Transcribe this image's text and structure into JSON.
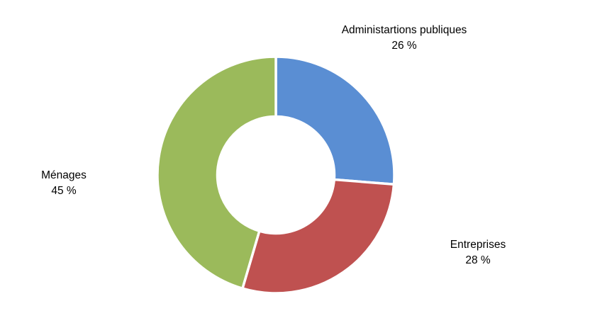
{
  "chart_data": {
    "type": "pie",
    "subtype": "donut",
    "title": "",
    "legend": "none",
    "background": "#ffffff",
    "separator_color": "#ffffff",
    "hole_ratio": 0.5,
    "start_angle_deg": 0,
    "direction": "clockwise",
    "label_style": "outside, category name + percent on two lines",
    "slices": [
      {
        "label": "Administartions publiques",
        "value_pct": 26,
        "display": "26 %",
        "color": "#5A8ED3"
      },
      {
        "label": "Entreprises",
        "value_pct": 28,
        "display": "28 %",
        "color": "#BF5150"
      },
      {
        "label": "Ménages",
        "value_pct": 45,
        "display": "45 %",
        "color": "#9BBA5B"
      }
    ]
  }
}
